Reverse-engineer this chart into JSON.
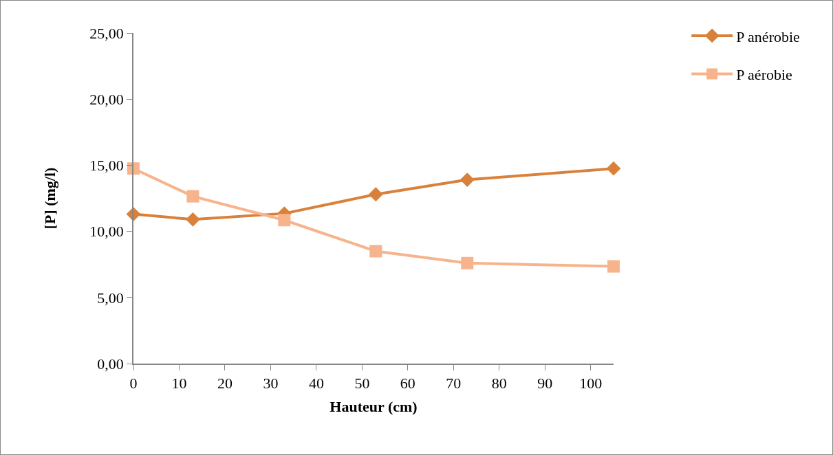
{
  "chart_data": {
    "type": "line",
    "xlabel": "Hauteur (cm)",
    "ylabel": "[P] (mg/l)",
    "x": [
      0,
      13,
      33,
      53,
      73,
      105
    ],
    "series": [
      {
        "name": "P anérobie",
        "color": "#d9813a",
        "marker": "diamond",
        "values": [
          11.3,
          10.9,
          11.35,
          12.8,
          13.9,
          14.75
        ]
      },
      {
        "name": "P aérobie",
        "color": "#f7b48c",
        "marker": "square",
        "values": [
          14.75,
          12.65,
          10.85,
          8.5,
          7.6,
          7.35
        ]
      }
    ],
    "xlim": [
      0,
      105
    ],
    "xticks": [
      0,
      10,
      20,
      30,
      40,
      50,
      60,
      70,
      80,
      90,
      100
    ],
    "ylim": [
      0,
      25
    ],
    "yticks": [
      {
        "value": 0,
        "label": "0,00"
      },
      {
        "value": 5,
        "label": "5,00"
      },
      {
        "value": 10,
        "label": "10,00"
      },
      {
        "value": 15,
        "label": "15,00"
      },
      {
        "value": 20,
        "label": "20,00"
      },
      {
        "value": 25,
        "label": "25,00"
      }
    ],
    "grid": false,
    "legend": "top right",
    "line_style": "solid"
  }
}
